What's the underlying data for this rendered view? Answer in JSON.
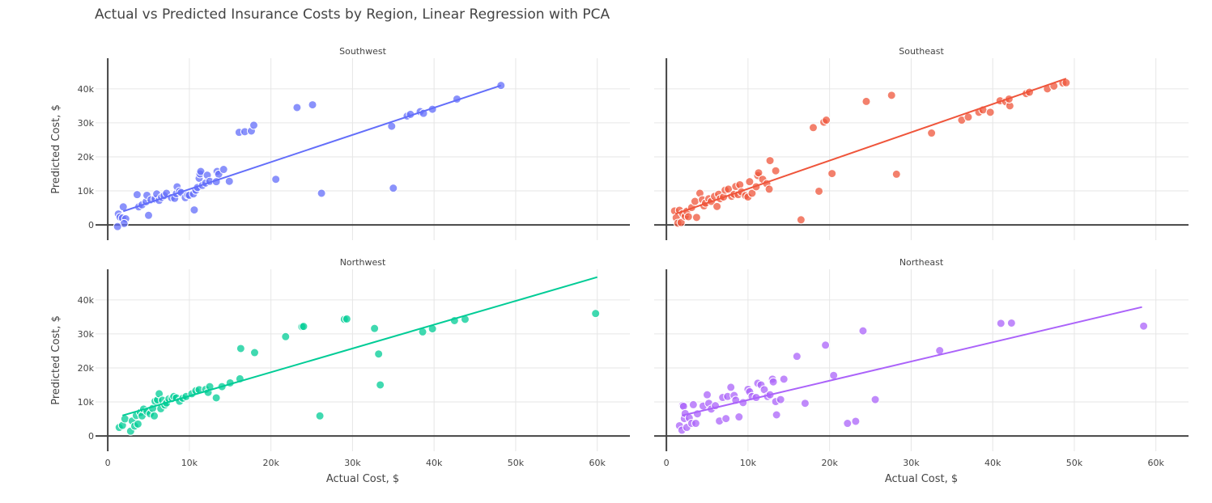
{
  "title": "Actual vs Predicted Insurance Costs by Region, Linear Regression with PCA",
  "chart_data": {
    "type": "scatter",
    "title": "Actual vs Predicted Insurance Costs by Region, Linear Regression with PCA",
    "xlabel": "Actual Cost, $",
    "ylabel": "Predicted Cost, $",
    "xlim": [
      -1500,
      64000
    ],
    "ylim": [
      -4500,
      49000
    ],
    "x_ticks": [
      0,
      10000,
      20000,
      30000,
      40000,
      50000,
      60000
    ],
    "x_tick_labels": [
      "0",
      "10k",
      "20k",
      "30k",
      "40k",
      "50k",
      "60k"
    ],
    "y_ticks": [
      0,
      10000,
      20000,
      30000,
      40000
    ],
    "y_tick_labels": [
      "0",
      "10k",
      "20k",
      "30k",
      "40k"
    ],
    "grid": true,
    "legend": "none",
    "panels": [
      {
        "name": "Southwest",
        "color": "#636efa",
        "fit": [
          [
            1900,
            4000
          ],
          [
            48200,
            41000
          ]
        ],
        "points": [
          [
            1300,
            3200
          ],
          [
            1500,
            2300
          ],
          [
            1800,
            2000
          ],
          [
            1900,
            5300
          ],
          [
            2200,
            1800
          ],
          [
            2000,
            400
          ],
          [
            1200,
            -500
          ],
          [
            3600,
            8900
          ],
          [
            3800,
            5300
          ],
          [
            4200,
            5900
          ],
          [
            4700,
            6800
          ],
          [
            4800,
            8700
          ],
          [
            5000,
            2800
          ],
          [
            5300,
            7400
          ],
          [
            5800,
            7600
          ],
          [
            6000,
            9100
          ],
          [
            6300,
            7200
          ],
          [
            6600,
            8100
          ],
          [
            6900,
            8600
          ],
          [
            7200,
            9300
          ],
          [
            7800,
            8000
          ],
          [
            8200,
            7800
          ],
          [
            8400,
            9200
          ],
          [
            8500,
            11200
          ],
          [
            8800,
            9900
          ],
          [
            9000,
            9500
          ],
          [
            9500,
            8000
          ],
          [
            9800,
            8800
          ],
          [
            10000,
            8700
          ],
          [
            10500,
            9100
          ],
          [
            10600,
            4400
          ],
          [
            10800,
            10200
          ],
          [
            11000,
            11000
          ],
          [
            11200,
            13700
          ],
          [
            11300,
            15000
          ],
          [
            11400,
            15700
          ],
          [
            11600,
            11600
          ],
          [
            12000,
            12300
          ],
          [
            12200,
            14600
          ],
          [
            12500,
            12800
          ],
          [
            13400,
            15700
          ],
          [
            13600,
            14900
          ],
          [
            13300,
            12700
          ],
          [
            14200,
            16300
          ],
          [
            14900,
            12800
          ],
          [
            16100,
            27200
          ],
          [
            16800,
            27400
          ],
          [
            17600,
            27600
          ],
          [
            17900,
            29300
          ],
          [
            20600,
            13400
          ],
          [
            23200,
            34500
          ],
          [
            25100,
            35300
          ],
          [
            26200,
            9300
          ],
          [
            34800,
            29000
          ],
          [
            35000,
            10800
          ],
          [
            36700,
            32000
          ],
          [
            37100,
            32500
          ],
          [
            38300,
            33300
          ],
          [
            38700,
            32800
          ],
          [
            39800,
            34000
          ],
          [
            42800,
            37000
          ],
          [
            48200,
            41000
          ]
        ]
      },
      {
        "name": "Southeast",
        "color": "#ef553b",
        "fit": [
          [
            1100,
            3200
          ],
          [
            49000,
            43000
          ]
        ],
        "points": [
          [
            1000,
            4100
          ],
          [
            1200,
            2100
          ],
          [
            1400,
            500
          ],
          [
            1600,
            4300
          ],
          [
            1800,
            700
          ],
          [
            2000,
            3300
          ],
          [
            2300,
            2500
          ],
          [
            2500,
            4000
          ],
          [
            2700,
            2400
          ],
          [
            3100,
            5100
          ],
          [
            3500,
            6900
          ],
          [
            3700,
            2200
          ],
          [
            4100,
            9300
          ],
          [
            4400,
            7400
          ],
          [
            4600,
            5600
          ],
          [
            4800,
            6400
          ],
          [
            5200,
            7700
          ],
          [
            5500,
            6900
          ],
          [
            5900,
            8400
          ],
          [
            6200,
            5400
          ],
          [
            6400,
            9000
          ],
          [
            6600,
            7700
          ],
          [
            7000,
            8200
          ],
          [
            7200,
            10200
          ],
          [
            7600,
            10500
          ],
          [
            8000,
            8400
          ],
          [
            8300,
            9000
          ],
          [
            8500,
            11300
          ],
          [
            8800,
            8900
          ],
          [
            9000,
            11800
          ],
          [
            9200,
            9700
          ],
          [
            9700,
            8600
          ],
          [
            10000,
            8200
          ],
          [
            10200,
            12700
          ],
          [
            10500,
            9300
          ],
          [
            11000,
            11200
          ],
          [
            11200,
            14500
          ],
          [
            11300,
            15300
          ],
          [
            11800,
            13400
          ],
          [
            12300,
            12100
          ],
          [
            12600,
            10500
          ],
          [
            12700,
            18900
          ],
          [
            13400,
            15900
          ],
          [
            16500,
            1500
          ],
          [
            18000,
            28600
          ],
          [
            18700,
            9900
          ],
          [
            19300,
            30200
          ],
          [
            19600,
            30800
          ],
          [
            20300,
            15100
          ],
          [
            24500,
            36300
          ],
          [
            27600,
            38100
          ],
          [
            28200,
            14900
          ],
          [
            32500,
            27000
          ],
          [
            36200,
            30800
          ],
          [
            37000,
            31700
          ],
          [
            38300,
            33100
          ],
          [
            38800,
            33800
          ],
          [
            39700,
            33100
          ],
          [
            40900,
            36500
          ],
          [
            41600,
            36200
          ],
          [
            42100,
            35000
          ],
          [
            42000,
            37000
          ],
          [
            44100,
            38600
          ],
          [
            44500,
            39000
          ],
          [
            46700,
            40000
          ],
          [
            47500,
            40800
          ],
          [
            48600,
            41700
          ],
          [
            49000,
            41800
          ]
        ]
      },
      {
        "name": "Northwest",
        "color": "#00cc96",
        "fit": [
          [
            1800,
            6000
          ],
          [
            60000,
            46700
          ]
        ],
        "points": [
          [
            1400,
            2500
          ],
          [
            1800,
            3100
          ],
          [
            2100,
            5000
          ],
          [
            2800,
            1400
          ],
          [
            3000,
            4400
          ],
          [
            3300,
            2900
          ],
          [
            3500,
            6000
          ],
          [
            3700,
            3500
          ],
          [
            4000,
            6900
          ],
          [
            4200,
            5900
          ],
          [
            4400,
            7900
          ],
          [
            4800,
            7200
          ],
          [
            5200,
            6500
          ],
          [
            5500,
            8100
          ],
          [
            5700,
            5900
          ],
          [
            5800,
            10200
          ],
          [
            6100,
            10600
          ],
          [
            6300,
            12400
          ],
          [
            6500,
            8000
          ],
          [
            6700,
            10500
          ],
          [
            7000,
            9100
          ],
          [
            7200,
            9700
          ],
          [
            7500,
            10900
          ],
          [
            7900,
            11000
          ],
          [
            8100,
            11600
          ],
          [
            8400,
            11200
          ],
          [
            8800,
            10200
          ],
          [
            9200,
            11100
          ],
          [
            9600,
            11600
          ],
          [
            10300,
            12400
          ],
          [
            10800,
            13300
          ],
          [
            11200,
            13600
          ],
          [
            12000,
            13700
          ],
          [
            12300,
            12800
          ],
          [
            12500,
            14500
          ],
          [
            13300,
            11200
          ],
          [
            14000,
            14500
          ],
          [
            15000,
            15600
          ],
          [
            16200,
            16800
          ],
          [
            16300,
            25700
          ],
          [
            18000,
            24500
          ],
          [
            21800,
            29200
          ],
          [
            23800,
            32100
          ],
          [
            24000,
            32200
          ],
          [
            29000,
            34300
          ],
          [
            29300,
            34400
          ],
          [
            32700,
            31600
          ],
          [
            33200,
            24100
          ],
          [
            33400,
            15000
          ],
          [
            26000,
            5900
          ],
          [
            38600,
            30600
          ],
          [
            39800,
            31500
          ],
          [
            42500,
            33900
          ],
          [
            43800,
            34300
          ],
          [
            59800,
            36000
          ]
        ]
      },
      {
        "name": "Northeast",
        "color": "#ab63fa",
        "fit": [
          [
            1900,
            6000
          ],
          [
            58300,
            37900
          ]
        ],
        "points": [
          [
            1600,
            3000
          ],
          [
            1900,
            1700
          ],
          [
            2000,
            9000
          ],
          [
            2100,
            8700
          ],
          [
            2200,
            5100
          ],
          [
            2300,
            6600
          ],
          [
            2500,
            2500
          ],
          [
            2800,
            5300
          ],
          [
            3100,
            3700
          ],
          [
            3300,
            9200
          ],
          [
            3600,
            3700
          ],
          [
            3800,
            6500
          ],
          [
            4500,
            8800
          ],
          [
            5000,
            12100
          ],
          [
            5200,
            9600
          ],
          [
            5500,
            7900
          ],
          [
            6000,
            8900
          ],
          [
            6500,
            4400
          ],
          [
            6900,
            11300
          ],
          [
            7300,
            5100
          ],
          [
            7500,
            11600
          ],
          [
            7900,
            14300
          ],
          [
            8300,
            11900
          ],
          [
            8500,
            10500
          ],
          [
            8900,
            5600
          ],
          [
            9400,
            9800
          ],
          [
            10000,
            13700
          ],
          [
            10200,
            13000
          ],
          [
            10500,
            11600
          ],
          [
            11000,
            11300
          ],
          [
            11200,
            15500
          ],
          [
            11600,
            15000
          ],
          [
            12000,
            13600
          ],
          [
            12400,
            11600
          ],
          [
            12700,
            12100
          ],
          [
            13000,
            16700
          ],
          [
            13100,
            15900
          ],
          [
            13400,
            10100
          ],
          [
            13500,
            6200
          ],
          [
            14000,
            10700
          ],
          [
            14400,
            16700
          ],
          [
            16000,
            23400
          ],
          [
            17000,
            9600
          ],
          [
            19500,
            26700
          ],
          [
            20500,
            17800
          ],
          [
            22200,
            3700
          ],
          [
            23200,
            4300
          ],
          [
            24100,
            30900
          ],
          [
            25600,
            10700
          ],
          [
            33500,
            25100
          ],
          [
            41000,
            33100
          ],
          [
            42300,
            33200
          ],
          [
            58500,
            32300
          ]
        ]
      }
    ]
  }
}
